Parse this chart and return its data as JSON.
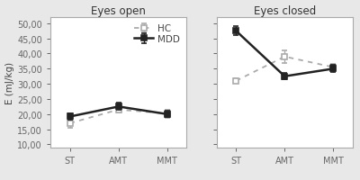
{
  "left_title": "Eyes open",
  "right_title": "Eyes closed",
  "ylabel": "E (mJ/kg)",
  "xtick_labels": [
    "ST",
    "AMT",
    "MMT"
  ],
  "ylim": [
    9.0,
    52.0
  ],
  "yticks": [
    10.0,
    15.0,
    20.0,
    25.0,
    30.0,
    35.0,
    40.0,
    45.0,
    50.0
  ],
  "ytick_labels": [
    "10,00",
    "15,00",
    "20,00",
    "25,00",
    "30,00",
    "35,00",
    "40,00",
    "45,00",
    "50,00"
  ],
  "hc_eyes_open": [
    17.0,
    21.5,
    20.2
  ],
  "mdd_eyes_open": [
    19.2,
    22.5,
    20.0
  ],
  "hc_eyes_open_err": [
    1.5,
    1.0,
    1.3
  ],
  "mdd_eyes_open_err": [
    1.0,
    1.2,
    1.0
  ],
  "hc_eyes_closed": [
    31.0,
    39.0,
    35.5
  ],
  "mdd_eyes_closed": [
    47.5,
    32.5,
    35.0
  ],
  "hc_eyes_closed_err": [
    0.8,
    2.0,
    1.2
  ],
  "mdd_eyes_closed_err": [
    1.5,
    1.0,
    1.2
  ],
  "hc_color": "#aaaaaa",
  "mdd_color": "#222222",
  "legend_labels": [
    "HC",
    "MDD"
  ],
  "bg_color": "#ffffff",
  "fig_bg_color": "#e8e8e8",
  "spine_color": "#aaaaaa",
  "title_fontsize": 8.5,
  "label_fontsize": 7.5,
  "tick_fontsize": 7.0,
  "legend_fontsize": 7.5
}
